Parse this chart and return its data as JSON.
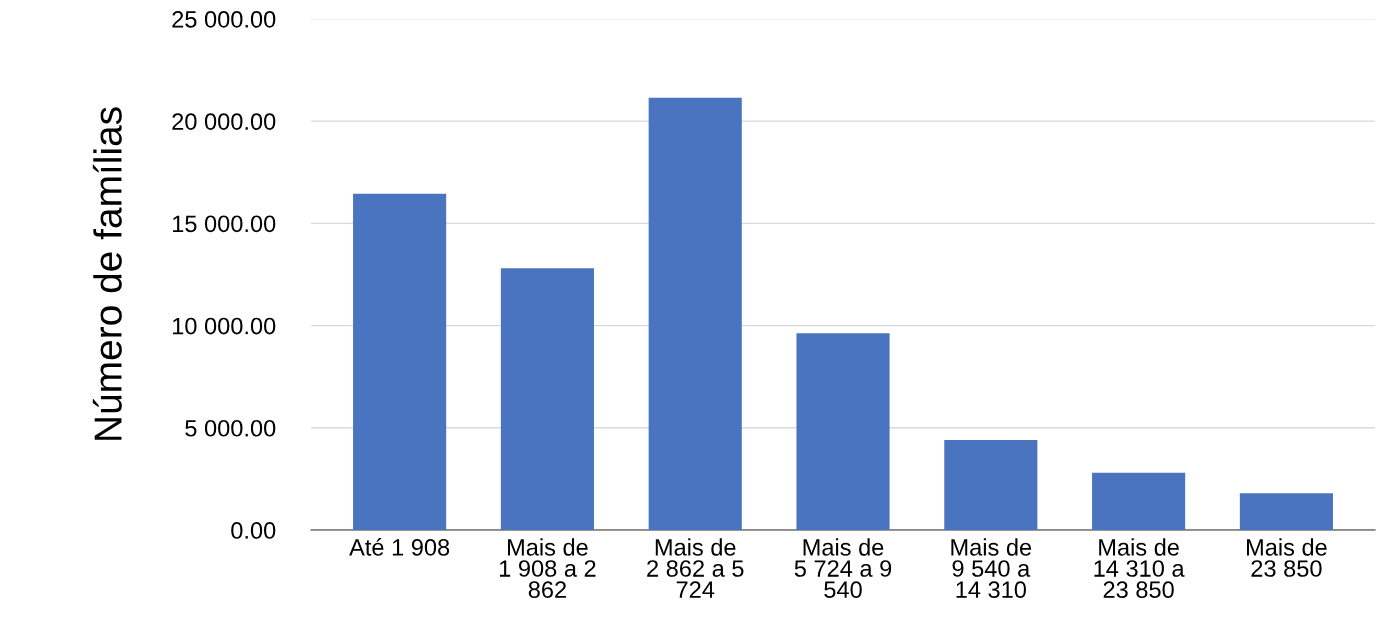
{
  "chart_data": {
    "type": "bar",
    "ylabel": "Número de famílias",
    "categories": [
      "Até 1 908",
      "Mais de\n1 908 a 2\n862",
      "Mais de\n2 862 a 5\n724",
      "Mais de\n5 724 a 9\n540",
      "Mais de\n9 540 a\n14 310",
      "Mais de\n14 310 a\n23 850",
      "Mais de\n23 850"
    ],
    "values": [
      16450,
      12800,
      21150,
      9630,
      4400,
      2800,
      1800
    ],
    "color": "#4a74bf",
    "ylim": [
      0,
      25000
    ],
    "yticks": [
      {
        "value": 0,
        "label": "0.00"
      },
      {
        "value": 5000,
        "label": "5 000.00"
      },
      {
        "value": 10000,
        "label": "10 000.00"
      },
      {
        "value": 15000,
        "label": "15 000.00"
      },
      {
        "value": 20000,
        "label": "20 000.00"
      },
      {
        "value": 25000,
        "label": "25 000.00"
      }
    ],
    "grid": "y",
    "legend": false
  }
}
